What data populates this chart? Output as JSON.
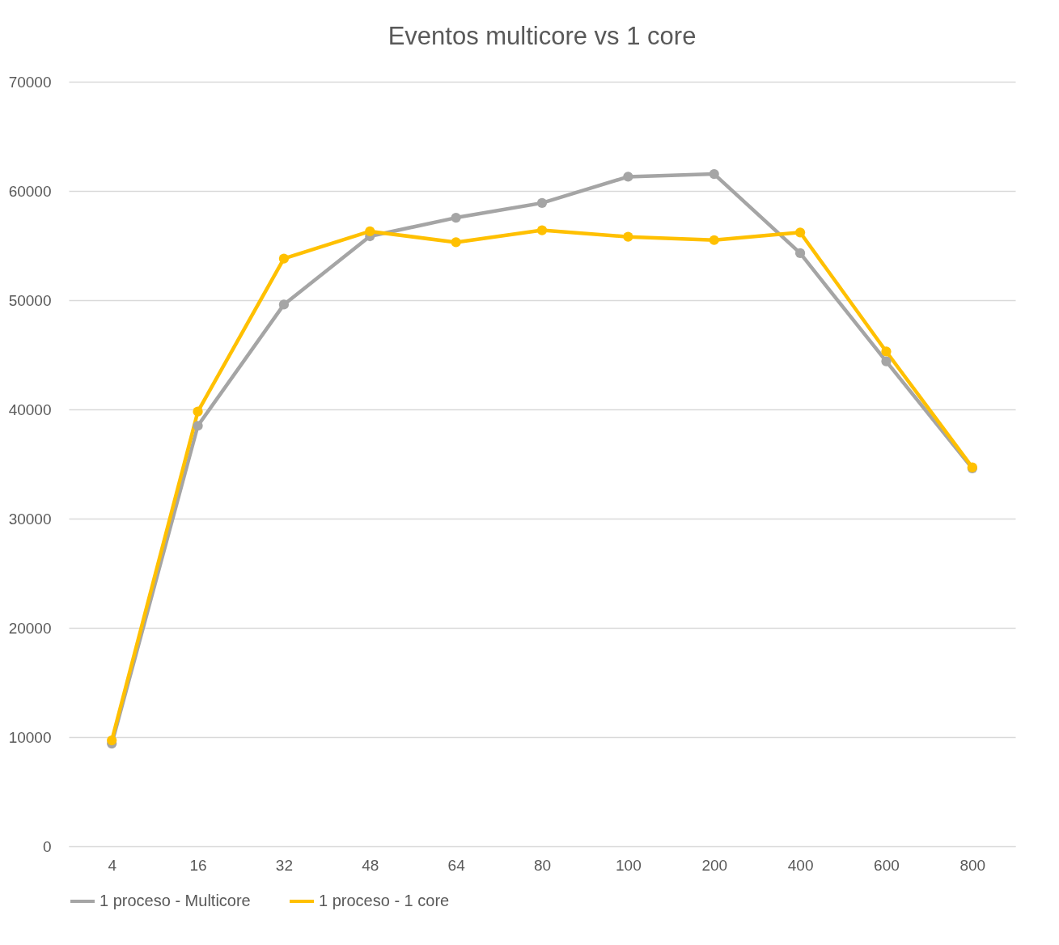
{
  "chart_data": {
    "type": "line",
    "title": "Eventos multicore vs 1 core",
    "categories": [
      "4",
      "16",
      "32",
      "48",
      "64",
      "80",
      "100",
      "200",
      "400",
      "600",
      "800"
    ],
    "series": [
      {
        "name": "1 proceso - Multicore",
        "color": "#a5a5a5",
        "values": [
          9400,
          38500,
          49600,
          55850,
          57550,
          58900,
          61300,
          61550,
          54300,
          44400,
          34600
        ]
      },
      {
        "name": "1 proceso - 1 core",
        "color": "#ffc000",
        "values": [
          9700,
          39800,
          53800,
          56300,
          55300,
          56400,
          55800,
          55500,
          56200,
          45300,
          34700
        ]
      }
    ],
    "ylim": [
      0,
      70000
    ],
    "yticks": [
      0,
      10000,
      20000,
      30000,
      40000,
      50000,
      60000,
      70000
    ],
    "grid": "y",
    "legend": "bottom",
    "marker": "circle",
    "line_style": "solid"
  }
}
